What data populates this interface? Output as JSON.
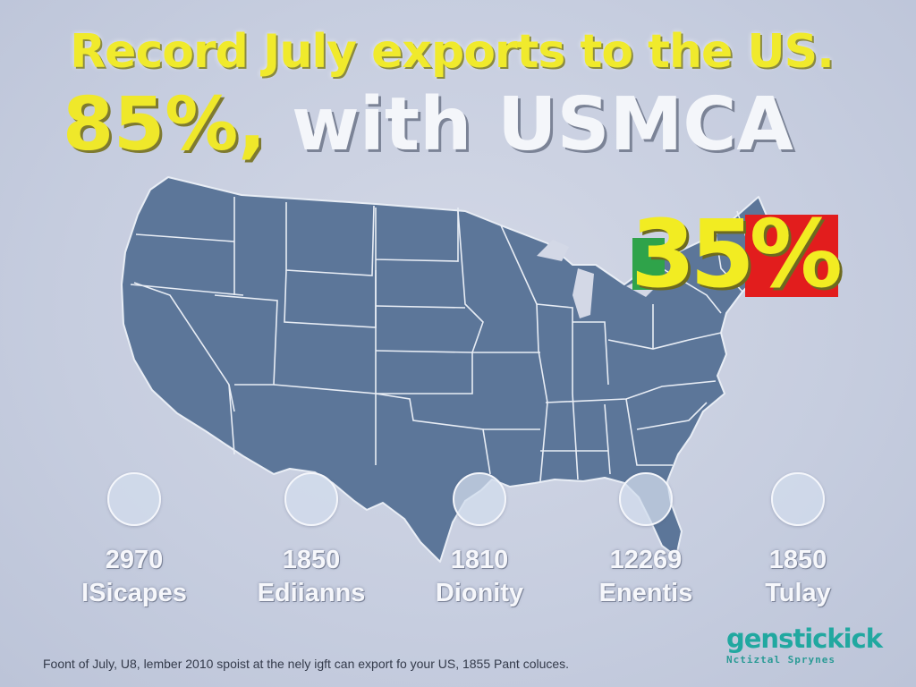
{
  "headline": {
    "line1": "Record July exports to the US.",
    "line2_highlight": "85%,",
    "line2_rest": " with USMCA"
  },
  "badge": {
    "value": "35%"
  },
  "map": {
    "fill_color": "#5c7699",
    "border_color": "#e8edf5"
  },
  "stats": [
    {
      "value": "2970",
      "label": "ISicapes"
    },
    {
      "value": "1850",
      "label": "Ediianns"
    },
    {
      "value": "1810",
      "label": "Dionity"
    },
    {
      "value": "12269",
      "label": "Enentis"
    },
    {
      "value": "1850",
      "label": "Tulay"
    }
  ],
  "footnote": "Foont of July, U8, lember 2010 spoist at the nely igft can export fo your US, 1855 Pant coluces.",
  "logo": {
    "name": "genstickick",
    "tagline": "Nctiztal Sprynes"
  }
}
